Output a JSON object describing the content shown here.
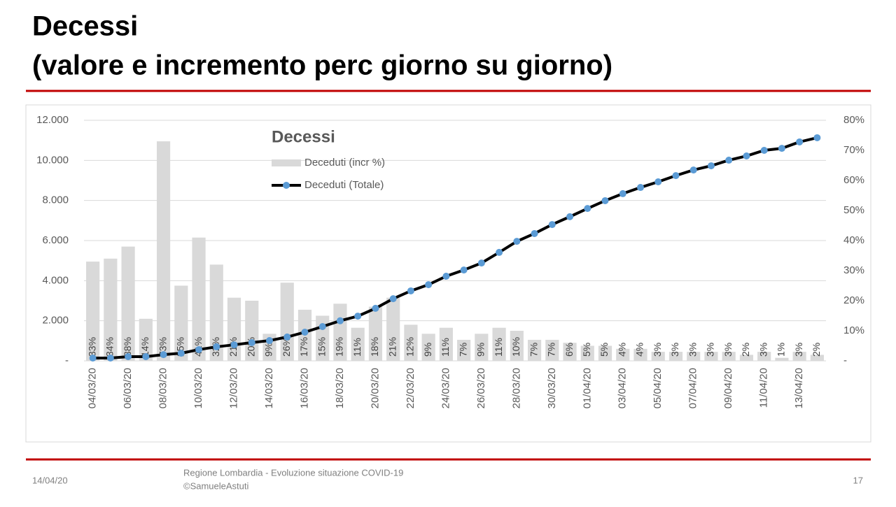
{
  "slide": {
    "title": "Decessi",
    "subtitle": "(valore e incremento perc giorno su giorno)",
    "footer_date": "14/04/20",
    "footer_source": "Regione Lombardia - Evoluzione situazione COVID-19",
    "footer_author": "©SamueleAstuti",
    "page_number": "17"
  },
  "chart_data": {
    "type": "combo",
    "title": "Decessi",
    "categories": [
      "04/03/20",
      null,
      "06/03/20",
      null,
      "08/03/20",
      null,
      "10/03/20",
      null,
      "12/03/20",
      null,
      "14/03/20",
      null,
      "16/03/20",
      null,
      "18/03/20",
      null,
      "20/03/20",
      null,
      "22/03/20",
      null,
      "24/03/20",
      null,
      "26/03/20",
      null,
      "28/03/20",
      null,
      "30/03/20",
      null,
      "01/04/20",
      null,
      "03/04/20",
      null,
      "05/04/20",
      null,
      "07/04/20",
      null,
      "09/04/20",
      null,
      "11/04/20",
      null,
      "13/04/20",
      null
    ],
    "series": [
      {
        "name": "Deceduti (incr %)",
        "type": "bar",
        "axis": "y2",
        "color": "#d9d9d9",
        "values": [
          33,
          34,
          38,
          14,
          73,
          25,
          41,
          32,
          21,
          20,
          9,
          26,
          17,
          15,
          19,
          11,
          18,
          21,
          12,
          9,
          11,
          7,
          9,
          11,
          10,
          7,
          7,
          6,
          5,
          5,
          4,
          4,
          3,
          3,
          3,
          3,
          3,
          2,
          3,
          1,
          3,
          2
        ],
        "value_labels": [
          "33%",
          "34%",
          "38%",
          "14%",
          "73%",
          "25%",
          "41%",
          "32%",
          "21%",
          "20%",
          "9%",
          "26%",
          "17%",
          "15%",
          "19%",
          "11%",
          "18%",
          "21%",
          "12%",
          "9%",
          "11%",
          "7%",
          "9%",
          "11%",
          "10%",
          "7%",
          "7%",
          "6%",
          "5%",
          "5%",
          "4%",
          "4%",
          "3%",
          "3%",
          "3%",
          "3%",
          "3%",
          "2%",
          "3%",
          "1%",
          "3%",
          "2%"
        ]
      },
      {
        "name": "Deceduti (Totale)",
        "type": "line",
        "color": "#000000",
        "marker_color": "#5b9bd5",
        "values": [
          140,
          140,
          210,
          210,
          310,
          380,
          560,
          700,
          800,
          910,
          1010,
          1190,
          1430,
          1710,
          2000,
          2230,
          2620,
          3100,
          3490,
          3800,
          4220,
          4530,
          4880,
          5410,
          5960,
          6350,
          6800,
          7190,
          7600,
          7990,
          8340,
          8650,
          8930,
          9240,
          9520,
          9730,
          10010,
          10220,
          10500,
          10600,
          10920,
          11130
        ]
      }
    ],
    "ylim": [
      0,
      12000
    ],
    "yticks": [
      {
        "value": 0,
        "label": "-"
      },
      {
        "value": 2000,
        "label": "2.000"
      },
      {
        "value": 4000,
        "label": "4.000"
      },
      {
        "value": 6000,
        "label": "6.000"
      },
      {
        "value": 8000,
        "label": "8.000"
      },
      {
        "value": 10000,
        "label": "10.000"
      },
      {
        "value": 12000,
        "label": "12.000"
      }
    ],
    "y2lim": [
      0,
      80
    ],
    "y2ticks": [
      {
        "value": 0,
        "label": "-"
      },
      {
        "value": 10,
        "label": "10%"
      },
      {
        "value": 20,
        "label": "20%"
      },
      {
        "value": 30,
        "label": "30%"
      },
      {
        "value": 40,
        "label": "40%"
      },
      {
        "value": 50,
        "label": "50%"
      },
      {
        "value": 60,
        "label": "60%"
      },
      {
        "value": 70,
        "label": "70%"
      },
      {
        "value": 80,
        "label": "80%"
      }
    ],
    "grid": true,
    "legend": "top-left"
  }
}
